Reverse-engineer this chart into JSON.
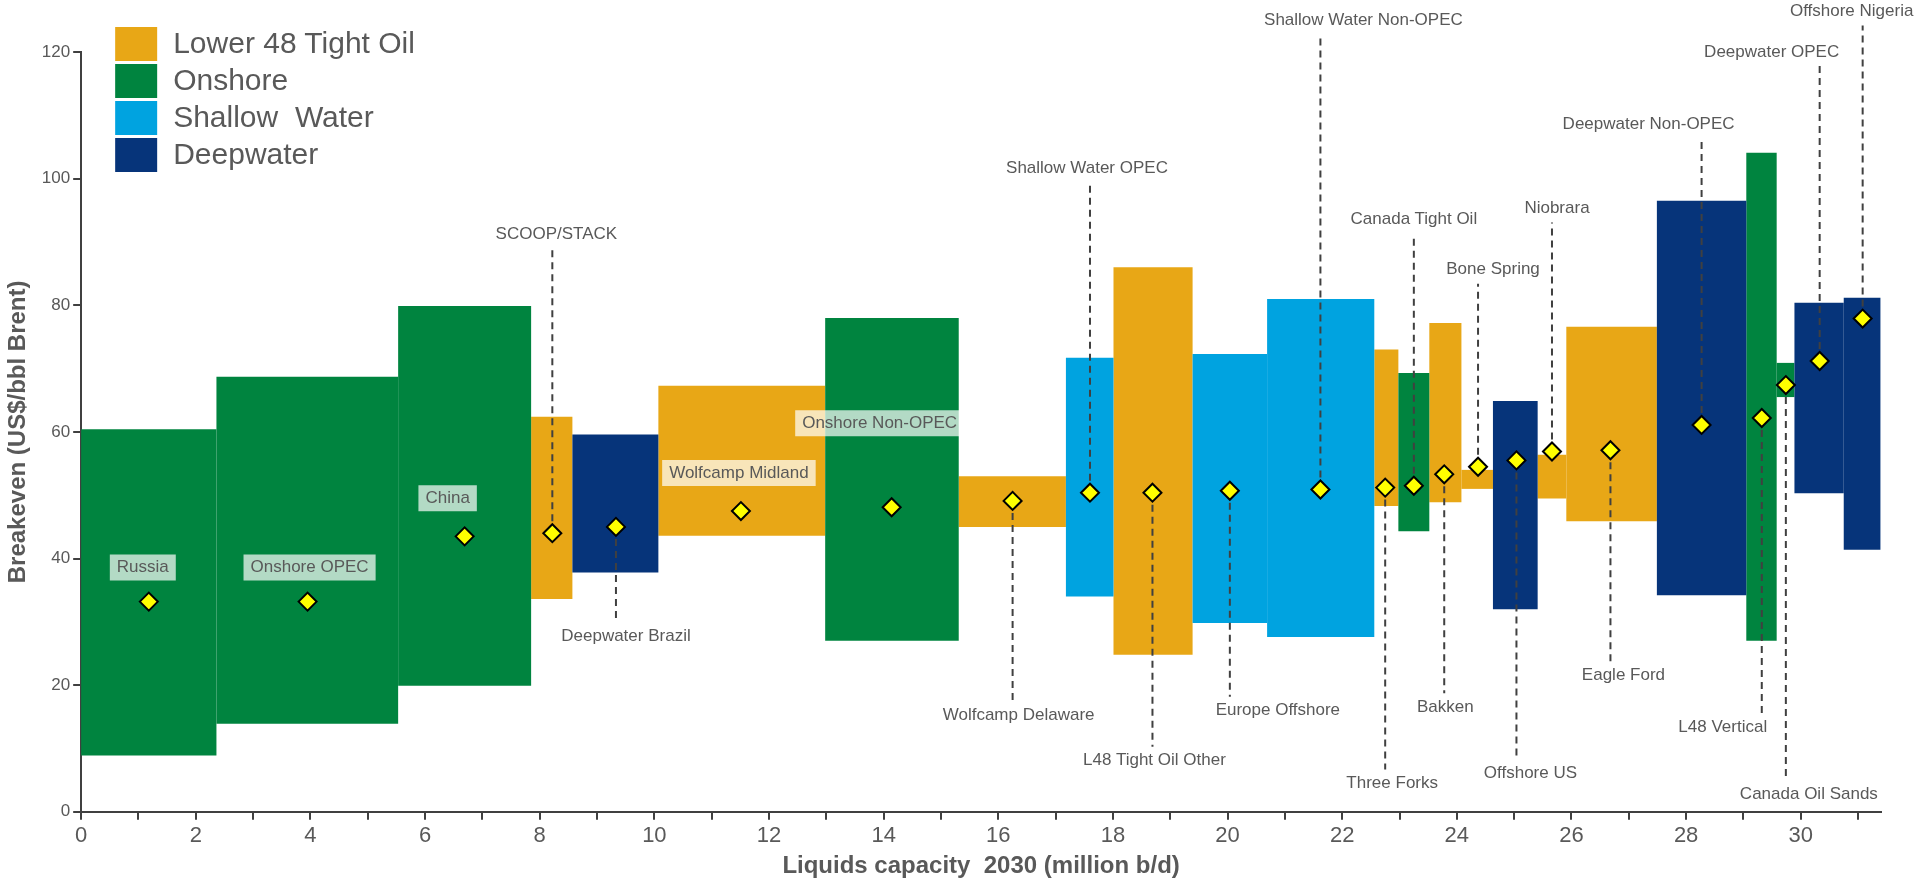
{
  "chart_data": {
    "type": "bar",
    "xlabel": "Liquids capacity  2030 (million b/d)",
    "ylabel": "Breakeven (US$/bbl Brent)",
    "x": [
      1.18,
      3.945,
      6.69,
      8.21,
      9.32,
      11.525,
      14.145,
      16.245,
      17.595,
      18.7,
      20.04,
      21.625,
      22.77,
      23.25,
      23.8,
      24.355,
      25.02,
      25.66,
      26.7,
      28.27,
      29.315,
      29.735,
      30.32,
      31.07
    ],
    "series": [
      {
        "name": "Lower 48 Tight Oil",
        "color": "#e8a716",
        "base": [
          null,
          null,
          null,
          33.6,
          null,
          43.6,
          null,
          45,
          null,
          24.8,
          null,
          null,
          48.3,
          null,
          48.9,
          51,
          null,
          49.5,
          45.9,
          null,
          null,
          null,
          null,
          null
        ],
        "values": [
          null,
          null,
          null,
          28.8,
          null,
          23.7,
          null,
          8,
          null,
          61.2,
          null,
          null,
          24.7,
          null,
          28.3,
          3,
          null,
          6.9,
          30.7,
          null,
          null,
          null,
          null,
          null
        ]
      },
      {
        "name": "Onshore",
        "color": "#00843f",
        "base": [
          8.9,
          13.9,
          19.9,
          null,
          null,
          null,
          27,
          null,
          null,
          null,
          null,
          null,
          null,
          44.3,
          null,
          null,
          null,
          null,
          null,
          null,
          27,
          65.5,
          null,
          null
        ],
        "values": [
          51.5,
          54.8,
          60,
          null,
          null,
          null,
          51,
          null,
          null,
          null,
          null,
          null,
          null,
          25,
          null,
          null,
          null,
          null,
          null,
          null,
          77.1,
          5.4,
          null,
          null
        ]
      },
      {
        "name": "Shallow  Water",
        "color": "#00a3e0",
        "base": [
          null,
          null,
          null,
          null,
          null,
          null,
          null,
          null,
          34,
          null,
          29.8,
          27.6,
          null,
          null,
          null,
          null,
          null,
          null,
          null,
          null,
          null,
          null,
          null,
          null
        ],
        "values": [
          null,
          null,
          null,
          null,
          null,
          null,
          null,
          null,
          37.7,
          null,
          42.5,
          53.4,
          null,
          null,
          null,
          null,
          null,
          null,
          null,
          null,
          null,
          null,
          null,
          null
        ]
      },
      {
        "name": "Deepwater",
        "color": "#06347a",
        "base": [
          null,
          null,
          null,
          null,
          37.8,
          null,
          null,
          null,
          null,
          null,
          null,
          null,
          null,
          null,
          null,
          null,
          32,
          null,
          null,
          34.2,
          null,
          null,
          50.3,
          41.4
        ],
        "values": [
          null,
          null,
          null,
          null,
          21.8,
          null,
          null,
          null,
          null,
          null,
          null,
          null,
          null,
          null,
          null,
          null,
          32.9,
          null,
          null,
          62.3,
          null,
          null,
          30.1,
          39.8
        ]
      },
      {
        "type": "scatter",
        "color": "#ffff00",
        "marker": "diamond",
        "x": [
          1.18,
          3.95,
          6.69,
          8.22,
          9.33,
          11.51,
          14.14,
          16.25,
          17.6,
          18.69,
          20.04,
          21.62,
          22.75,
          23.25,
          23.78,
          24.37,
          25.04,
          25.66,
          26.68,
          28.27,
          29.32,
          29.74,
          30.33,
          31.08
        ],
        "values": [
          33.2,
          33.2,
          43.5,
          44,
          45,
          47.5,
          48.1,
          49.1,
          50.4,
          50.4,
          50.7,
          50.9,
          51.2,
          51.5,
          53.3,
          54.5,
          55.5,
          56.9,
          57.1,
          61.1,
          62.2,
          67.4,
          71.2,
          77.9
        ]
      }
    ],
    "xlim": [
      0,
      31.4
    ],
    "xticks": [
      0,
      {
        "value": 1,
        "label": null
      },
      2,
      {
        "value": 3,
        "label": null
      },
      4,
      {
        "value": 5,
        "label": null
      },
      6,
      {
        "value": 7,
        "label": null
      },
      8,
      {
        "value": 9,
        "label": null
      },
      10,
      {
        "value": 11,
        "label": null
      },
      12,
      {
        "value": 13,
        "label": null
      },
      14,
      {
        "value": 15,
        "label": null
      },
      16,
      {
        "value": 17,
        "label": null
      },
      18,
      {
        "value": 19,
        "label": null
      },
      20,
      {
        "value": 21,
        "label": null
      },
      22,
      {
        "value": 23,
        "label": null
      },
      24,
      {
        "value": 25,
        "label": null
      },
      26,
      {
        "value": 27,
        "label": null
      },
      28,
      {
        "value": 29,
        "label": null
      },
      30,
      {
        "value": 31,
        "label": null
      }
    ],
    "ylim": [
      0,
      120
    ],
    "yticks": [
      0,
      20,
      40,
      60,
      80,
      100,
      120
    ],
    "legend": "top left",
    "annotations": [
      "Russia",
      "Onshore OPEC",
      "China",
      {
        "text": "SCOOP/STACK",
        "x": 8.22,
        "y": 44
      },
      {
        "text": "Deepwater Brazil",
        "x": 9.33,
        "y": 45
      },
      "Wolfcamp Midland",
      "Onshore Non-OPEC",
      {
        "text": "Wolfcamp Delaware",
        "x": 16.25,
        "y": 49.1
      },
      {
        "text": "Shallow Water OPEC",
        "x": 17.6,
        "y": 50.4
      },
      {
        "text": "L48 Tight Oil Other",
        "x": 18.69,
        "y": 50.4
      },
      {
        "text": "Europe Offshore",
        "x": 20.04,
        "y": 50.7
      },
      {
        "text": "Shallow Water Non-OPEC",
        "x": 21.62,
        "y": 50.9
      },
      {
        "text": "Three Forks",
        "x": 22.75,
        "y": 51.2
      },
      {
        "text": "Canada Tight Oil",
        "x": 23.25,
        "y": 51.5
      },
      {
        "text": "Bakken",
        "x": 23.78,
        "y": 53.3
      },
      {
        "text": "Bone Spring",
        "x": 24.37,
        "y": 54.5
      },
      {
        "text": "Offshore US",
        "x": 25.04,
        "y": 55.5
      },
      {
        "text": "Niobrara",
        "x": 25.66,
        "y": 56.9
      },
      {
        "text": "Eagle Ford",
        "x": 26.68,
        "y": 57.1
      },
      {
        "text": "Deepwater Non-OPEC",
        "x": 28.27,
        "y": 61.1
      },
      {
        "text": "L48 Vertical",
        "x": 29.32,
        "y": 62.2
      },
      {
        "text": "Canada Oil Sands",
        "x": 29.74,
        "y": 67.4
      },
      {
        "text": "Deepwater OPEC",
        "x": 30.33,
        "y": 71.2
      },
      {
        "text": "Offshore Nigeria",
        "x": 31.08,
        "y": 77.9
      }
    ]
  }
}
